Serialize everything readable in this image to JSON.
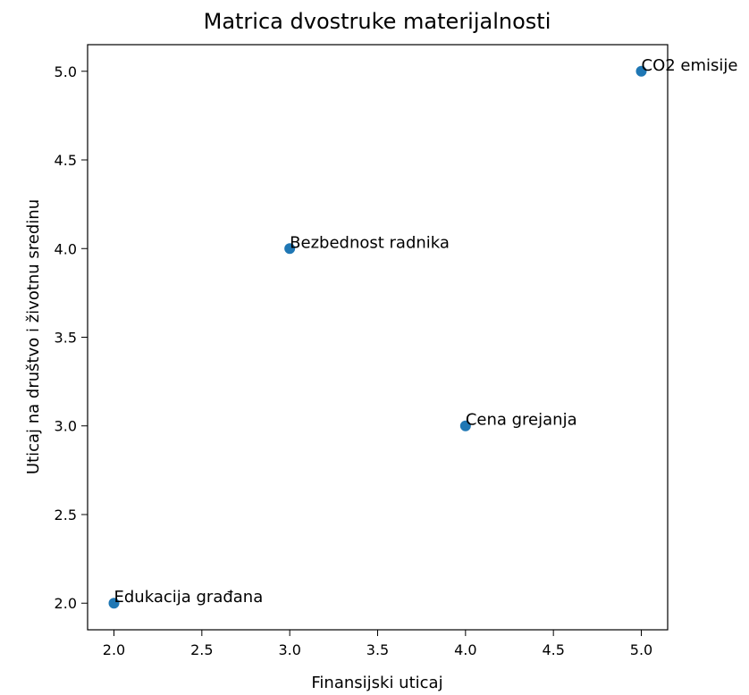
{
  "chart_data": {
    "type": "scatter",
    "title": "Matrica dvostruke materijalnosti",
    "xlabel": "Finansijski uticaj",
    "ylabel": "Uticaj na društvo i životnu sredinu",
    "xlim": [
      1.85,
      5.15
    ],
    "ylim": [
      1.85,
      5.15
    ],
    "x_ticks": [
      2.0,
      2.5,
      3.0,
      3.5,
      4.0,
      4.5,
      5.0
    ],
    "y_ticks": [
      2.0,
      2.5,
      3.0,
      3.5,
      4.0,
      4.5,
      5.0
    ],
    "x_tick_labels": [
      "2.0",
      "2.5",
      "3.0",
      "3.5",
      "4.0",
      "4.5",
      "5.0"
    ],
    "y_tick_labels": [
      "2.0",
      "2.5",
      "3.0",
      "3.5",
      "4.0",
      "4.5",
      "5.0"
    ],
    "grid": false,
    "marker_color": "#1f77b4",
    "points": [
      {
        "label": "CO2 emisije",
        "x": 5,
        "y": 5
      },
      {
        "label": "Bezbednost radnika",
        "x": 3,
        "y": 4
      },
      {
        "label": "Cena grejanja",
        "x": 4,
        "y": 3
      },
      {
        "label": "Edukacija građana",
        "x": 2,
        "y": 2
      }
    ]
  }
}
